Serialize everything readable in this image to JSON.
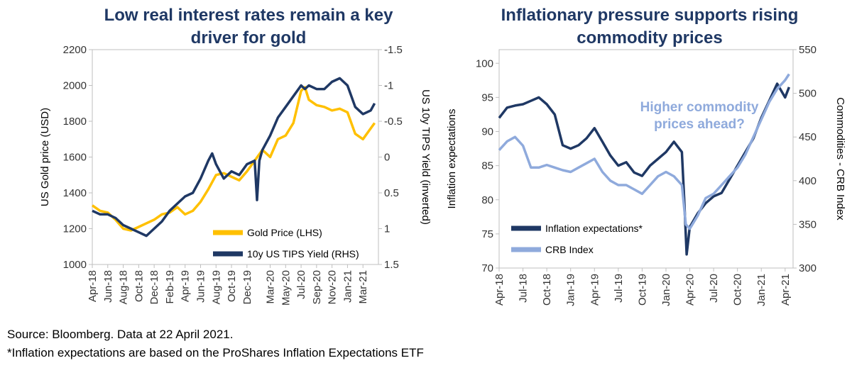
{
  "footer": {
    "source": "Source: Bloomberg. Data at 22 April 2021.",
    "note": "*Inflation expectations are based on the ProShares Inflation Expectations ETF"
  },
  "chart_data": [
    {
      "type": "line",
      "title": "Low real interest rates remain a key driver for gold",
      "ylabel": "US Gold price (USD)",
      "y2label": "US 10y TIPS Yield (inverted)",
      "ylim": [
        1000,
        2200
      ],
      "y2lim": [
        -1.5,
        1.5
      ],
      "y2_inverted": true,
      "yticks": [
        1000,
        1200,
        1400,
        1600,
        1800,
        2000,
        2200
      ],
      "y2ticks": [
        "-1.5",
        "-1",
        "-0.5",
        "0",
        "0.5",
        "1",
        "1.5"
      ],
      "xticks": [
        "Apr-18",
        "Jun-18",
        "Aug-18",
        "Oct-18",
        "Dec-18",
        "Feb-19",
        "Apr-19",
        "Jun-19",
        "Aug-19",
        "Oct-19",
        "Dec-19",
        "Mar-20",
        "May-20",
        "Jul-20",
        "Sep-20",
        "Nov-20",
        "Jan-21",
        "Mar-21"
      ],
      "x_range_months": [
        0,
        37
      ],
      "legend_position": "bottom-right",
      "grid": false,
      "series": [
        {
          "name": "Gold Price (LHS)",
          "axis": "left",
          "color": "#ffc000",
          "x": [
            0,
            1,
            2,
            3,
            4,
            5,
            6,
            7,
            8,
            9,
            10,
            11,
            12,
            13,
            14,
            15,
            16,
            17,
            18,
            19,
            20,
            21,
            22,
            23,
            24,
            25,
            26,
            27,
            27.5,
            28,
            29,
            30,
            31,
            32,
            33,
            34,
            35,
            36,
            36.5
          ],
          "values": [
            1330,
            1300,
            1290,
            1250,
            1200,
            1190,
            1210,
            1230,
            1250,
            1280,
            1290,
            1320,
            1280,
            1300,
            1350,
            1420,
            1500,
            1510,
            1490,
            1470,
            1520,
            1580,
            1640,
            1600,
            1700,
            1720,
            1790,
            1970,
            1990,
            1920,
            1890,
            1880,
            1860,
            1870,
            1850,
            1730,
            1700,
            1760,
            1790
          ]
        },
        {
          "name": "10y US TIPS Yield (RHS)",
          "axis": "right",
          "color": "#1f3864",
          "x": [
            0,
            1,
            2,
            3,
            4,
            5,
            6,
            7,
            8,
            9,
            10,
            11,
            12,
            13,
            14,
            15,
            15.5,
            16,
            17,
            18,
            19,
            20,
            21,
            21.3,
            21.6,
            22,
            23,
            24,
            25,
            26,
            27,
            27.5,
            28,
            29,
            30,
            31,
            32,
            33,
            34,
            35,
            36,
            36.5
          ],
          "values": [
            0.75,
            0.8,
            0.8,
            0.85,
            0.95,
            1.0,
            1.05,
            1.1,
            1.0,
            0.9,
            0.75,
            0.65,
            0.55,
            0.5,
            0.3,
            0.05,
            -0.05,
            0.1,
            0.3,
            0.2,
            0.25,
            0.1,
            0.05,
            0.6,
            0.05,
            -0.1,
            -0.3,
            -0.55,
            -0.7,
            -0.85,
            -1.0,
            -0.95,
            -1.0,
            -0.95,
            -0.95,
            -1.05,
            -1.1,
            -1.0,
            -0.7,
            -0.6,
            -0.65,
            -0.75
          ]
        }
      ]
    },
    {
      "type": "line",
      "title": "Inflationary pressure supports rising commodity prices",
      "ylabel": "Inflation expectations",
      "y2label": "Commodities - CRB Index",
      "ylim": [
        70,
        102
      ],
      "y2lim": [
        300,
        550
      ],
      "yticks": [
        70,
        75,
        80,
        85,
        90,
        95,
        100
      ],
      "y2ticks": [
        300,
        350,
        400,
        450,
        500,
        550
      ],
      "xticks": [
        "Apr-18",
        "Jul-18",
        "Oct-18",
        "Jan-19",
        "Apr-19",
        "Jul-19",
        "Oct-19",
        "Jan-20",
        "Apr-20",
        "Jul-20",
        "Oct-20",
        "Jan-21",
        "Apr-21"
      ],
      "x_range_months": [
        0,
        37
      ],
      "annotation": "Higher commodity prices ahead?",
      "legend_position": "bottom-left",
      "grid": false,
      "series": [
        {
          "name": "Inflation expectations*",
          "axis": "left",
          "color": "#1f3864",
          "x": [
            0,
            1,
            2,
            3,
            4,
            5,
            6,
            7,
            8,
            9,
            10,
            11,
            12,
            13,
            14,
            15,
            16,
            17,
            18,
            19,
            20,
            21,
            22,
            23,
            23.3,
            23.6,
            24,
            25,
            26,
            27,
            28,
            29,
            30,
            31,
            32,
            33,
            34,
            35,
            36,
            36.5
          ],
          "values": [
            92,
            93.5,
            93.8,
            94,
            94.5,
            95,
            94,
            92.5,
            88,
            87.5,
            88,
            89,
            90.5,
            88.5,
            86.5,
            85,
            85.5,
            84,
            83.5,
            85,
            86,
            87,
            88.5,
            87,
            80,
            72,
            76,
            78,
            79.5,
            80.5,
            81,
            83,
            85,
            87,
            89,
            92,
            94.5,
            97,
            95,
            96.5
          ]
        },
        {
          "name": "CRB Index",
          "axis": "right",
          "color": "#8faadc",
          "x": [
            0,
            1,
            2,
            3,
            4,
            5,
            6,
            7,
            8,
            9,
            10,
            11,
            12,
            13,
            14,
            15,
            16,
            17,
            18,
            19,
            20,
            21,
            22,
            23,
            23.5,
            24,
            25,
            26,
            27,
            28,
            29,
            30,
            31,
            32,
            33,
            34,
            35,
            36,
            36.5
          ],
          "values": [
            435,
            445,
            450,
            440,
            415,
            415,
            418,
            415,
            412,
            410,
            415,
            420,
            425,
            410,
            400,
            395,
            395,
            390,
            385,
            395,
            405,
            410,
            405,
            395,
            350,
            345,
            360,
            380,
            385,
            395,
            405,
            415,
            430,
            450,
            470,
            490,
            505,
            515,
            522
          ]
        }
      ]
    }
  ]
}
